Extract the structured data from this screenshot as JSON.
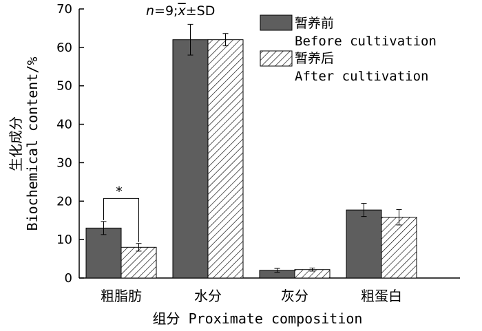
{
  "chart_data": {
    "type": "bar",
    "categories": [
      "粗脂肪",
      "水分",
      "灰分",
      "粗蛋白"
    ],
    "series": [
      {
        "name_zh": "暂养前",
        "name_en": "Before cultivation",
        "values": [
          13.0,
          62.0,
          2.0,
          17.7
        ],
        "errors": [
          1.7,
          4.0,
          0.5,
          1.7
        ],
        "color": "#5e5e5e",
        "pattern": "solid"
      },
      {
        "name_zh": "暂养后",
        "name_en": "After cultivation",
        "values": [
          8.0,
          62.0,
          2.2,
          15.8
        ],
        "errors": [
          1.0,
          1.6,
          0.4,
          2.0
        ],
        "color": "#ffffff",
        "pattern": "hatch"
      }
    ],
    "ylim": [
      0,
      70
    ],
    "yticks": [
      0,
      10,
      20,
      30,
      40,
      50,
      60,
      70
    ],
    "ylabel_zh": "生化成分",
    "ylabel_en": "Biochemical content/%",
    "xlabel": "组分 Proximate composition",
    "stats_note": {
      "n_var": "n",
      "n_rest": "=9;",
      "mean": "x",
      "pm_sd": "±SD"
    },
    "significance": {
      "category_index": 0,
      "marker": "*"
    },
    "legend_position": "top-right",
    "grid": false
  }
}
